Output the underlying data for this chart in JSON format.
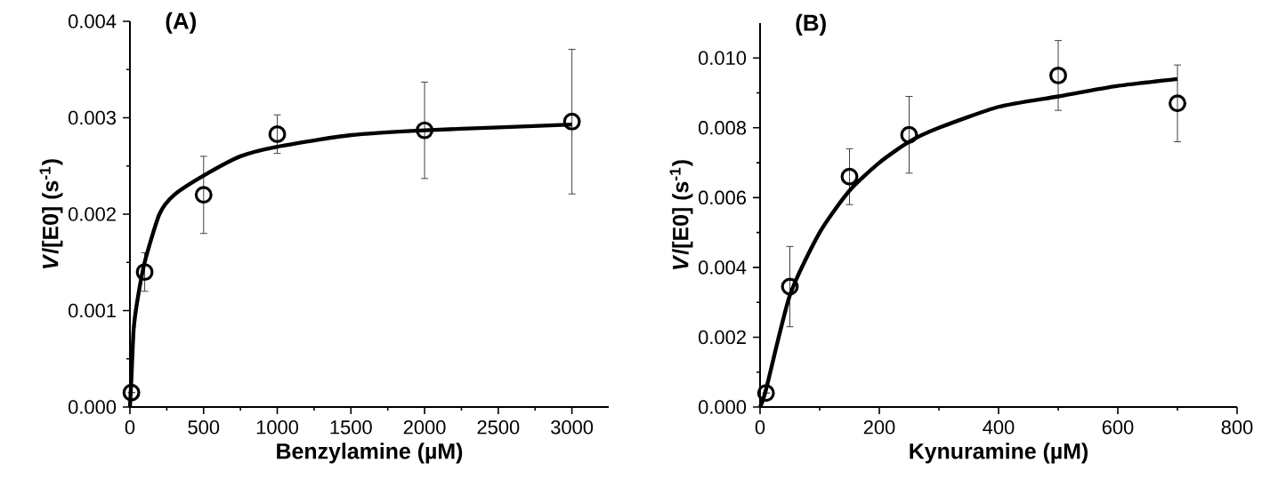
{
  "chart_data": [
    {
      "type": "scatter",
      "title": "(A)",
      "xlabel": "Benzylamine (µM)",
      "ylabel": "*V*/[E0] (s$^{-1}$)",
      "xlim": [
        0,
        3250
      ],
      "ylim": [
        0,
        0.004
      ],
      "xticks": [
        0,
        500,
        1000,
        1500,
        2000,
        2500,
        3000
      ],
      "yticks": [
        {
          "value": 0,
          "label": "0.000"
        },
        {
          "value": 0.001,
          "label": "0.001"
        },
        {
          "value": 0.002,
          "label": "0.002"
        },
        {
          "value": 0.003,
          "label": "0.003"
        },
        {
          "value": 0.004,
          "label": "0.004"
        }
      ],
      "series": [
        {
          "marker": "circle",
          "color": "#000000",
          "x": [
            10,
            100,
            500,
            1000,
            2000,
            3000
          ],
          "values": [
            0.00015,
            0.0014,
            0.0022,
            0.00283,
            0.00287,
            0.00296
          ],
          "errors": [
            null,
            0.0002,
            0.0004,
            0.0002,
            0.0005,
            0.00075
          ]
        },
        {
          "type": "line",
          "marker": "none",
          "color": "#000000",
          "x": [
            0,
            10,
            25,
            50,
            100,
            200,
            300,
            500,
            750,
            1000,
            1500,
            2000,
            2500,
            3000
          ],
          "values": [
            0,
            0.0003,
            0.0008,
            0.0011,
            0.0015,
            0.002,
            0.0022,
            0.0024,
            0.0026,
            0.0027,
            0.00282,
            0.00287,
            0.0029,
            0.00293
          ]
        }
      ]
    },
    {
      "type": "scatter",
      "title": "(B)",
      "xlabel": "Kynuramine (µM)",
      "ylabel": "*V*/[E0] (s$^{-1}$)",
      "xlim": [
        0,
        800
      ],
      "ylim": [
        0,
        0.011
      ],
      "xticks": [
        0,
        200,
        400,
        600,
        800
      ],
      "yticks": [
        {
          "value": 0,
          "label": "0.000"
        },
        {
          "value": 0.002,
          "label": "0.002"
        },
        {
          "value": 0.004,
          "label": "0.004"
        },
        {
          "value": 0.006,
          "label": "0.006"
        },
        {
          "value": 0.008,
          "label": "0.008"
        },
        {
          "value": 0.01,
          "label": "0.010"
        }
      ],
      "series": [
        {
          "marker": "circle",
          "color": "#000000",
          "x": [
            10,
            50,
            150,
            250,
            500,
            700
          ],
          "values": [
            0.0004,
            0.00345,
            0.0066,
            0.0078,
            0.0095,
            0.0087
          ],
          "errors": [
            null,
            0.00115,
            0.0008,
            0.0011,
            0.001,
            0.0011
          ]
        },
        {
          "type": "line",
          "marker": "none",
          "color": "#000000",
          "x": [
            0,
            10,
            50,
            100,
            150,
            200,
            250,
            300,
            400,
            500,
            600,
            700
          ],
          "values": [
            0,
            0.0005,
            0.0032,
            0.005,
            0.0062,
            0.007,
            0.0076,
            0.008,
            0.0086,
            0.0089,
            0.0092,
            0.0094
          ]
        }
      ]
    }
  ]
}
